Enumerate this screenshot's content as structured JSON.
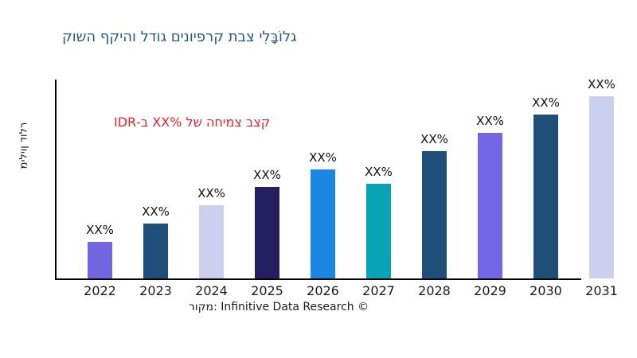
{
  "page": {
    "background": "#ffffff"
  },
  "chart_data": {
    "type": "bar",
    "title": "גלוֹבָּלִי צבת קרפיונים גודל והיקף השוק",
    "title_color": "#2a5784",
    "ylabel": "מיליון דולר",
    "categories": [
      "2022",
      "2023",
      "2024",
      "2025",
      "2026",
      "2027",
      "2028",
      "2029",
      "2030",
      "2031"
    ],
    "value_labels": [
      "XX%",
      "XX%",
      "XX%",
      "XX%",
      "XX%",
      "XX%",
      "XX%",
      "XX%",
      "XX%",
      "XX%"
    ],
    "relative_heights": [
      0.2,
      0.3,
      0.4,
      0.5,
      0.6,
      0.52,
      0.7,
      0.8,
      0.9,
      1.0
    ],
    "bar_colors": [
      "#7165e2",
      "#1f4e79",
      "#ccd0ef",
      "#231f60",
      "#1b86e3",
      "#0aa3b5",
      "#1f4e79",
      "#7467e6",
      "#1f4e79",
      "#ccd0ef"
    ],
    "annotation": {
      "full_logical": "קצב צמיחה של XX% ב-IDR",
      "prefix_hebrew": "קצב צמיחה של",
      "value": "XX%",
      "suffix_hebrew": "ב-IDR",
      "color": "#e8232a"
    },
    "axis_color": "#000000",
    "grid": false,
    "legend": false,
    "source": "מקור: Infinitive Data Research ©"
  }
}
